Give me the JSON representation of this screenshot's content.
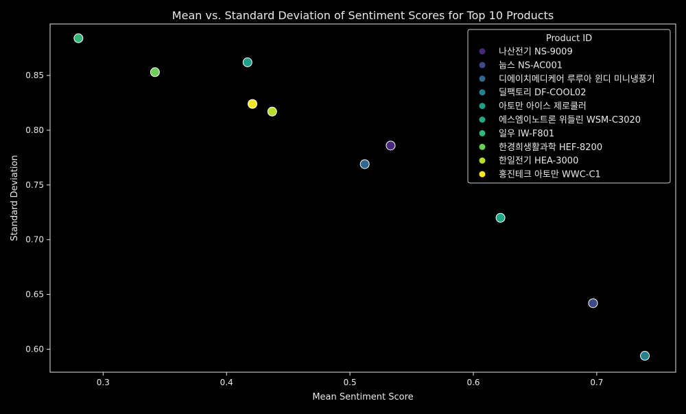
{
  "chart_data": {
    "type": "scatter",
    "title": "Mean vs. Standard Deviation of Sentiment Scores for Top 10 Products",
    "xlabel": "Mean Sentiment Score",
    "ylabel": "Standard Deviation",
    "xlim": [
      0.257,
      0.764
    ],
    "ylim": [
      0.579,
      0.897
    ],
    "xticks": [
      0.3,
      0.4,
      0.5,
      0.6,
      0.7
    ],
    "xtick_labels": [
      "0.3",
      "0.4",
      "0.5",
      "0.6",
      "0.7"
    ],
    "yticks": [
      0.6,
      0.65,
      0.7,
      0.75,
      0.8,
      0.85
    ],
    "ytick_labels": [
      "0.60",
      "0.65",
      "0.70",
      "0.75",
      "0.80",
      "0.85"
    ],
    "grid": false,
    "legend": {
      "title": "Product ID",
      "placement": "top-right"
    },
    "series": [
      {
        "name": "나산전기 NS-9009",
        "color": "#482878",
        "points": [
          [
            0.533,
            0.786
          ]
        ]
      },
      {
        "name": "눕스 NS-AC001",
        "color": "#3e4989",
        "points": [
          [
            0.697,
            0.642
          ]
        ]
      },
      {
        "name": "디에이치메디케어 루루아 윈디 미니냉풍기",
        "color": "#31688e",
        "points": [
          [
            0.512,
            0.769
          ]
        ]
      },
      {
        "name": "딜팩토리 DF-COOL02",
        "color": "#26828e",
        "points": [
          [
            0.739,
            0.594
          ]
        ]
      },
      {
        "name": "아토만  아이스 제로쿨러",
        "color": "#1f9e89",
        "points": [
          [
            0.417,
            0.862
          ]
        ]
      },
      {
        "name": "에스엠이노트론 위들린 WSM-C3020",
        "color": "#22a884",
        "points": [
          [
            0.622,
            0.72
          ]
        ]
      },
      {
        "name": "일우 IW-F801",
        "color": "#35b779",
        "points": [
          [
            0.28,
            0.884
          ]
        ]
      },
      {
        "name": "한경희생활과학 HEF-8200",
        "color": "#6ece58",
        "points": [
          [
            0.342,
            0.853
          ]
        ]
      },
      {
        "name": "한일전기 HEA-3000",
        "color": "#b5de2b",
        "points": [
          [
            0.437,
            0.817
          ]
        ]
      },
      {
        "name": "홍진테크 아토만 WWC-C1",
        "color": "#fde725",
        "points": [
          [
            0.421,
            0.824
          ]
        ]
      }
    ]
  }
}
